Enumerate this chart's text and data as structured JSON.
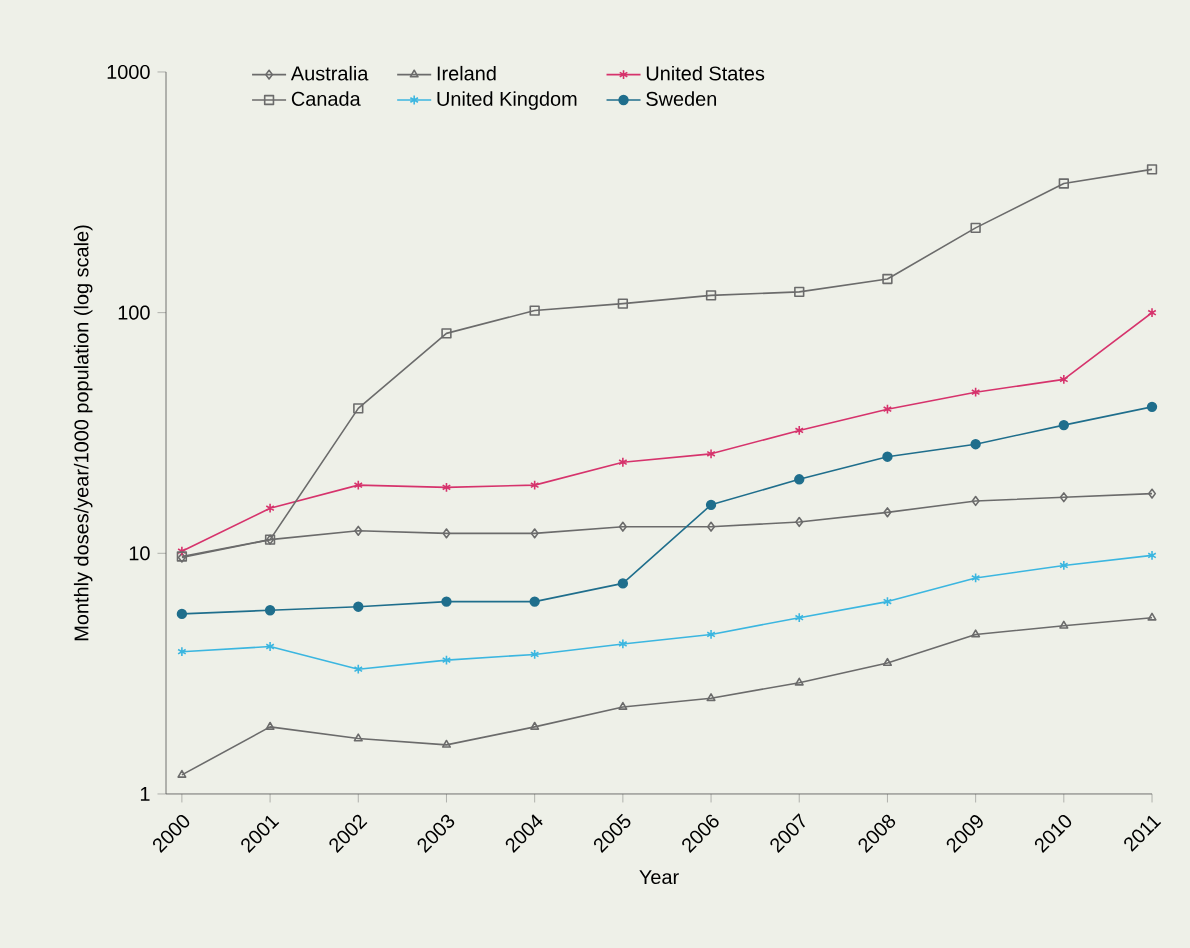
{
  "chart_data": {
    "type": "line",
    "xlabel": "Year",
    "ylabel": "Monthly doses/year/1000 population (log scale)",
    "categories": [
      "2000",
      "2001",
      "2002",
      "2003",
      "2004",
      "2005",
      "2006",
      "2007",
      "2008",
      "2009",
      "2010",
      "2011"
    ],
    "series": [
      {
        "name": "Australia",
        "color": "#6b6b6b",
        "marker": "diamond",
        "values": [
          9.6,
          11.4,
          12.4,
          12.1,
          12.1,
          12.9,
          12.9,
          13.5,
          14.8,
          16.5,
          17.1,
          17.7
        ]
      },
      {
        "name": "Ireland",
        "color": "#6b6b6b",
        "marker": "triangle",
        "values": [
          1.2,
          1.9,
          1.7,
          1.6,
          1.9,
          2.3,
          2.5,
          2.9,
          3.5,
          4.6,
          5.0,
          5.4
        ]
      },
      {
        "name": "United States",
        "color": "#d6336c",
        "marker": "cross",
        "values": [
          10.2,
          15.4,
          19.2,
          18.8,
          19.2,
          23.9,
          25.9,
          32.4,
          39.7,
          46.7,
          52.8,
          100
        ]
      },
      {
        "name": "Canada",
        "color": "#6b6b6b",
        "marker": "square",
        "values": [
          9.7,
          11.4,
          40,
          82,
          102,
          109,
          118,
          122,
          138,
          225,
          344,
          394
        ]
      },
      {
        "name": "United Kingdom",
        "color": "#3bb6e0",
        "marker": "cross",
        "values": [
          3.9,
          4.1,
          3.3,
          3.6,
          3.8,
          4.2,
          4.6,
          5.4,
          6.3,
          7.9,
          8.9,
          9.8
        ]
      },
      {
        "name": "Sweden",
        "color": "#1f6e8c",
        "marker": "circle",
        "values": [
          5.6,
          5.8,
          6.0,
          6.3,
          6.3,
          7.5,
          15.9,
          20.3,
          25.2,
          28.4,
          34.1,
          40.6
        ]
      }
    ],
    "log": "y",
    "ylim": [
      1,
      1000
    ],
    "yticks": [
      1,
      10,
      100,
      1000
    ],
    "legend": "top left",
    "grid": false,
    "line_style": "solid"
  }
}
